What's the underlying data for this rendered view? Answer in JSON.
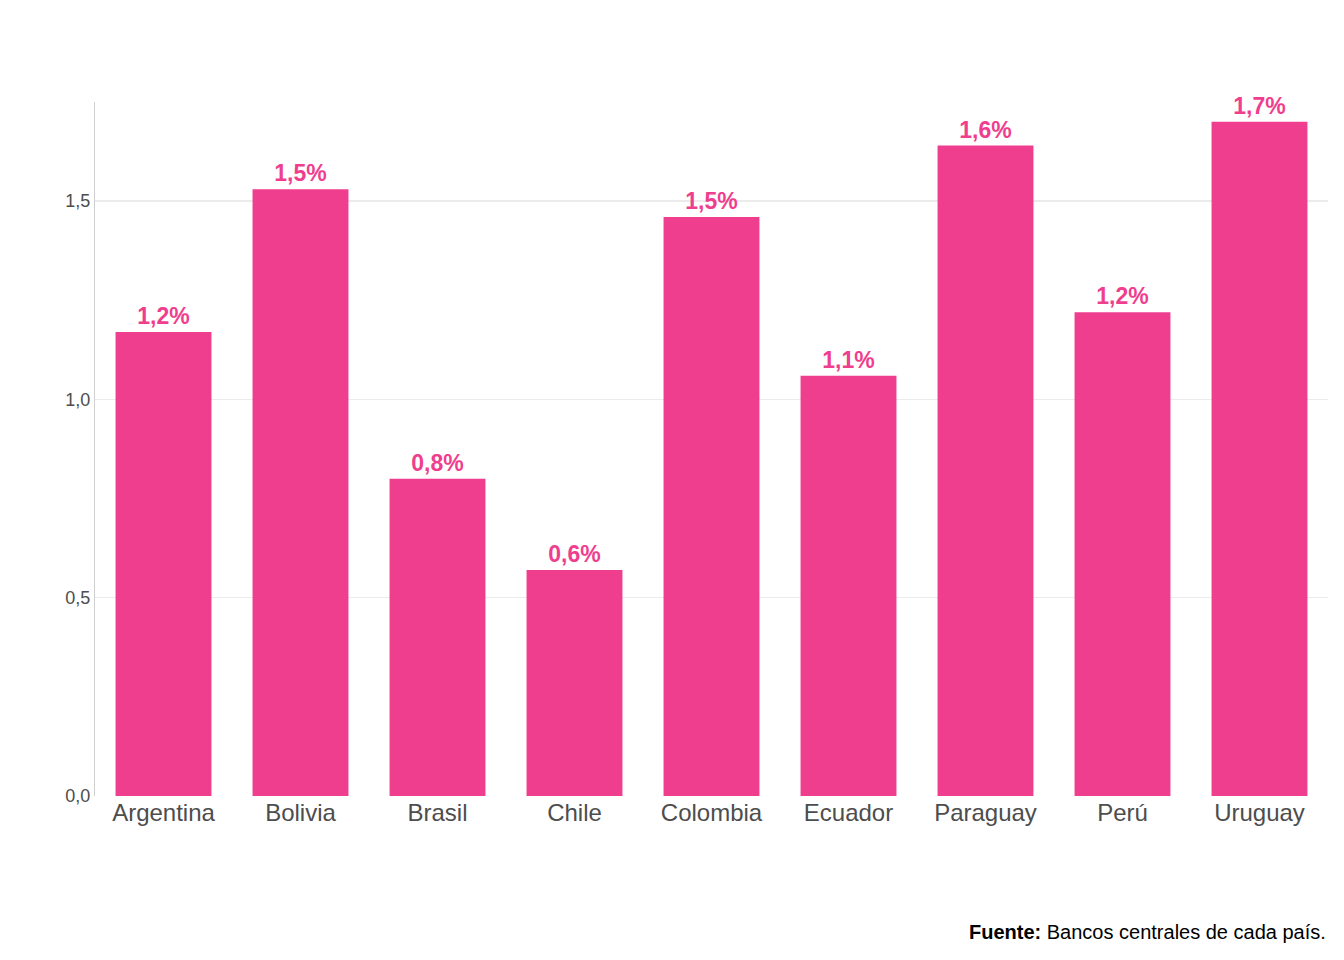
{
  "chart_data": {
    "type": "bar",
    "categories": [
      "Argentina",
      "Bolivia",
      "Brasil",
      "Chile",
      "Colombia",
      "Ecuador",
      "Paraguay",
      "Perú",
      "Uruguay"
    ],
    "values": [
      1.17,
      1.53,
      0.8,
      0.57,
      1.46,
      1.06,
      1.64,
      1.22,
      1.7
    ],
    "value_labels": [
      "1,2%",
      "1,5%",
      "0,8%",
      "0,6%",
      "1,5%",
      "1,1%",
      "1,6%",
      "1,2%",
      "1,7%"
    ],
    "data_labels": true,
    "color": "#ef3e8e",
    "ylim": [
      0,
      1.75
    ],
    "yticks": [
      {
        "value": 0,
        "label": "0,0"
      },
      {
        "value": 0.5,
        "label": "0,5"
      },
      {
        "value": 1,
        "label": "1,0"
      },
      {
        "value": 1.5,
        "label": "1,5"
      }
    ],
    "grid": true,
    "source": {
      "label": "Fuente:",
      "text": "Bancos centrales de cada país."
    }
  }
}
